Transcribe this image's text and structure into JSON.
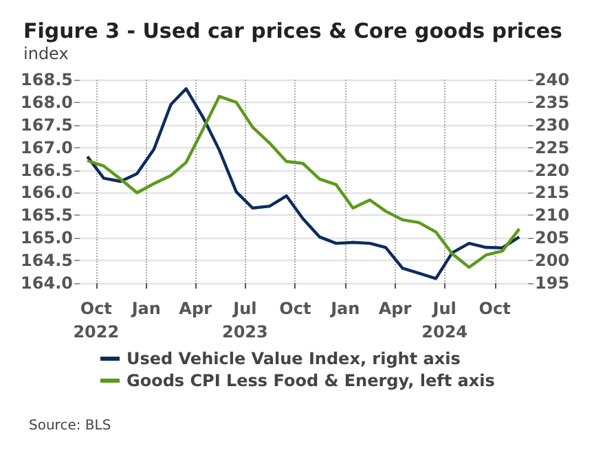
{
  "chart_data": {
    "type": "line",
    "title": "Figure 3 - Used car prices & Core goods prices",
    "ylabel": "index",
    "x": [
      "2022-09-15",
      "2022-10-15",
      "2022-11-15",
      "2022-12-15",
      "2023-01-15",
      "2023-02-15",
      "2023-03-15",
      "2023-04-15",
      "2023-05-15",
      "2023-06-15",
      "2023-07-15",
      "2023-08-15",
      "2023-09-15",
      "2023-10-15",
      "2023-11-15",
      "2023-12-15",
      "2024-01-15",
      "2024-02-15",
      "2024-03-15",
      "2024-04-15",
      "2024-05-15",
      "2024-06-15",
      "2024-07-15",
      "2024-08-15",
      "2024-09-15",
      "2024-10-15",
      "2024-11-15"
    ],
    "series": [
      {
        "name": "Used Vehicle Value Index, right axis",
        "color": "#0e2b5c",
        "axis": "y2",
        "values": [
          223.0,
          218.2,
          217.5,
          219.2,
          224.6,
          234.5,
          238.0,
          231.7,
          224.4,
          215.2,
          211.6,
          212.0,
          214.3,
          209.3,
          205.2,
          203.8,
          204.0,
          203.8,
          202.9,
          198.3,
          197.2,
          196.0,
          201.7,
          203.8,
          202.9,
          202.8,
          205.2
        ]
      },
      {
        "name": "Goods CPI Less Food & Energy, left axis",
        "color": "#5c9a1b",
        "values": [
          166.71,
          166.59,
          166.3,
          166.0,
          166.2,
          166.38,
          166.67,
          167.4,
          168.13,
          168.0,
          167.45,
          167.1,
          166.69,
          166.65,
          166.3,
          166.18,
          165.66,
          165.84,
          165.59,
          165.4,
          165.34,
          165.13,
          164.65,
          164.35,
          164.62,
          164.71,
          165.2
        ]
      }
    ],
    "xlim": [
      "2022-09-01",
      "2024-12-01"
    ],
    "xticks": [
      {
        "value": "2022-10-01",
        "label": "Oct\n2022"
      },
      {
        "value": "2023-01-01",
        "label": "Jan"
      },
      {
        "value": "2023-04-01",
        "label": "Apr"
      },
      {
        "value": "2023-07-01",
        "label": "Jul\n2023"
      },
      {
        "value": "2023-10-01",
        "label": "Oct"
      },
      {
        "value": "2024-01-01",
        "label": "Jan"
      },
      {
        "value": "2024-04-01",
        "label": "Apr"
      },
      {
        "value": "2024-07-01",
        "label": "Jul\n2024"
      },
      {
        "value": "2024-10-01",
        "label": "Oct"
      }
    ],
    "ylim": [
      164,
      168.5
    ],
    "yticks": [
      {
        "value": 164,
        "label": "164.0"
      },
      164.5,
      {
        "value": 165,
        "label": "165.0"
      },
      165.5,
      {
        "value": 166,
        "label": "166.0"
      },
      166.5,
      {
        "value": 167,
        "label": "167.0"
      },
      167.5,
      {
        "value": 168,
        "label": "168.0"
      },
      168.5
    ],
    "y2lim": [
      195,
      240
    ],
    "y2ticks": [
      195,
      200,
      205,
      210,
      215,
      220,
      225,
      230,
      235,
      240
    ],
    "grid": true,
    "legend": "bottom",
    "marker": "none",
    "line_style": "solid",
    "annotations": [
      "Source: BLS"
    ]
  }
}
